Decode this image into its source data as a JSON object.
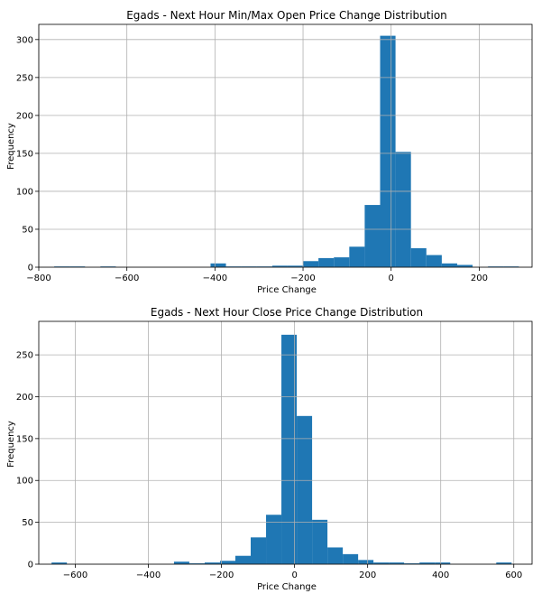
{
  "chart_data": [
    {
      "type": "histogram",
      "title": "Egads - Next Hour Min/Max Open Price Change Distribution",
      "xlabel": "Price Change",
      "ylabel": "Frequency",
      "xlim": [
        -800,
        320
      ],
      "ylim": [
        0,
        320
      ],
      "xticks": [
        -800,
        -600,
        -400,
        -200,
        0,
        200
      ],
      "yticks": [
        0,
        50,
        100,
        150,
        200,
        250,
        300
      ],
      "grid": true,
      "bar_color": "#1f77b4",
      "bins": [
        {
          "x0": -765,
          "x1": -730,
          "count": 1
        },
        {
          "x0": -730,
          "x1": -695,
          "count": 1
        },
        {
          "x0": -660,
          "x1": -625,
          "count": 1
        },
        {
          "x0": -410,
          "x1": -375,
          "count": 5
        },
        {
          "x0": -375,
          "x1": -340,
          "count": 1
        },
        {
          "x0": -340,
          "x1": -305,
          "count": 1
        },
        {
          "x0": -305,
          "x1": -270,
          "count": 1
        },
        {
          "x0": -270,
          "x1": -235,
          "count": 2
        },
        {
          "x0": -235,
          "x1": -200,
          "count": 2
        },
        {
          "x0": -200,
          "x1": -165,
          "count": 8
        },
        {
          "x0": -165,
          "x1": -130,
          "count": 12
        },
        {
          "x0": -130,
          "x1": -95,
          "count": 13
        },
        {
          "x0": -95,
          "x1": -60,
          "count": 27
        },
        {
          "x0": -60,
          "x1": -25,
          "count": 82
        },
        {
          "x0": -25,
          "x1": 10,
          "count": 305
        },
        {
          "x0": 10,
          "x1": 45,
          "count": 152
        },
        {
          "x0": 45,
          "x1": 80,
          "count": 25
        },
        {
          "x0": 80,
          "x1": 115,
          "count": 16
        },
        {
          "x0": 115,
          "x1": 150,
          "count": 5
        },
        {
          "x0": 150,
          "x1": 185,
          "count": 3
        },
        {
          "x0": 220,
          "x1": 255,
          "count": 1
        },
        {
          "x0": 255,
          "x1": 290,
          "count": 1
        }
      ]
    },
    {
      "type": "histogram",
      "title": "Egads - Next Hour Close Price Change Distribution",
      "xlabel": "Price Change",
      "ylabel": "Frequency",
      "xlim": [
        -700,
        650
      ],
      "ylim": [
        0,
        290
      ],
      "xticks": [
        -600,
        -400,
        -200,
        0,
        200,
        400,
        600
      ],
      "yticks": [
        0,
        50,
        100,
        150,
        200,
        250
      ],
      "grid": true,
      "bar_color": "#1f77b4",
      "bins": [
        {
          "x0": -665,
          "x1": -623,
          "count": 2
        },
        {
          "x0": -330,
          "x1": -288,
          "count": 3
        },
        {
          "x0": -288,
          "x1": -246,
          "count": 1
        },
        {
          "x0": -246,
          "x1": -204,
          "count": 2
        },
        {
          "x0": -204,
          "x1": -162,
          "count": 4
        },
        {
          "x0": -162,
          "x1": -120,
          "count": 10
        },
        {
          "x0": -120,
          "x1": -78,
          "count": 32
        },
        {
          "x0": -78,
          "x1": -36,
          "count": 59
        },
        {
          "x0": -36,
          "x1": 6,
          "count": 274
        },
        {
          "x0": 6,
          "x1": 48,
          "count": 177
        },
        {
          "x0": 48,
          "x1": 90,
          "count": 53
        },
        {
          "x0": 90,
          "x1": 132,
          "count": 20
        },
        {
          "x0": 132,
          "x1": 174,
          "count": 12
        },
        {
          "x0": 174,
          "x1": 216,
          "count": 5
        },
        {
          "x0": 216,
          "x1": 258,
          "count": 2
        },
        {
          "x0": 258,
          "x1": 300,
          "count": 2
        },
        {
          "x0": 300,
          "x1": 342,
          "count": 1
        },
        {
          "x0": 342,
          "x1": 384,
          "count": 2
        },
        {
          "x0": 384,
          "x1": 426,
          "count": 2
        },
        {
          "x0": 552,
          "x1": 594,
          "count": 2
        }
      ]
    }
  ]
}
